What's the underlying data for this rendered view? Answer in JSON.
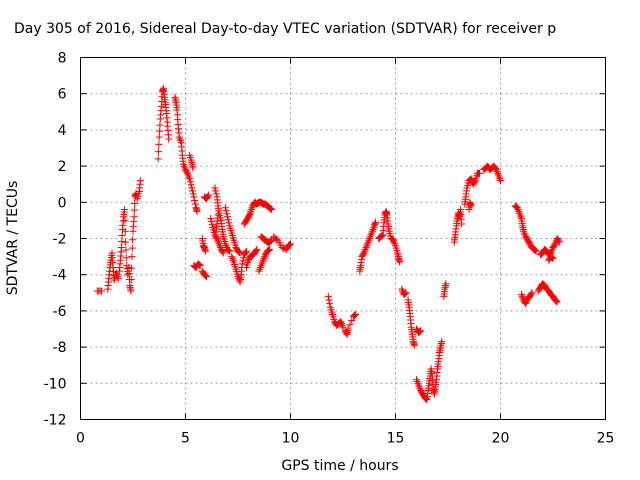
{
  "chart_data": {
    "type": "scatter",
    "title": "Day 305 of 2016, Sidereal Day-to-day VTEC variation (SDTVAR) for receiver p",
    "xlabel": "GPS time / hours",
    "ylabel": "SDTVAR / TECUs",
    "xlim": [
      0,
      25
    ],
    "ylim": [
      -12,
      8
    ],
    "x_ticks": [
      "0",
      "5",
      "10",
      "15",
      "20",
      "25"
    ],
    "y_ticks": [
      "-12",
      "-10",
      "-8",
      "-6",
      "-4",
      "-2",
      "0",
      "2",
      "4",
      "6",
      "8"
    ],
    "grid": true,
    "marker": "+",
    "color": "#ff0000",
    "segments": [
      [
        [
          0.8,
          -4.9
        ],
        [
          1.0,
          -4.9
        ]
      ],
      [
        [
          1.3,
          -4.8
        ],
        [
          1.35,
          -4.2
        ],
        [
          1.4,
          -3.6
        ],
        [
          1.45,
          -3.2
        ],
        [
          1.5,
          -2.8
        ],
        [
          1.55,
          -3.6
        ],
        [
          1.6,
          -4.3
        ],
        [
          1.7,
          -3.9
        ],
        [
          1.8,
          -4.2
        ]
      ],
      [
        [
          1.85,
          -3.8
        ],
        [
          1.9,
          -3.2
        ],
        [
          1.95,
          -2.5
        ],
        [
          2.0,
          -1.5
        ],
        [
          2.05,
          -0.8
        ],
        [
          2.1,
          -0.4
        ],
        [
          2.15,
          -2.2
        ],
        [
          2.2,
          -3.5
        ],
        [
          2.25,
          -4.0
        ]
      ],
      [
        [
          2.3,
          -3.6
        ],
        [
          2.35,
          -4.6
        ],
        [
          2.4,
          -4.9
        ],
        [
          2.45,
          -3.0
        ],
        [
          2.5,
          -1.6
        ],
        [
          2.55,
          -0.8
        ],
        [
          2.6,
          0.3
        ],
        [
          2.65,
          0.5
        ]
      ],
      [
        [
          2.7,
          0.2
        ],
        [
          2.8,
          0.6
        ],
        [
          2.85,
          1.2
        ]
      ],
      [
        [
          3.7,
          2.4
        ],
        [
          3.75,
          3.6
        ],
        [
          3.8,
          4.6
        ],
        [
          3.85,
          5.3
        ],
        [
          3.9,
          6.1
        ],
        [
          3.95,
          6.3
        ],
        [
          4.0,
          5.8
        ],
        [
          4.05,
          5.4
        ],
        [
          4.1,
          4.9
        ],
        [
          4.15,
          4.2
        ],
        [
          4.2,
          3.5
        ]
      ],
      [
        [
          4.5,
          5.8
        ],
        [
          4.55,
          5.5
        ],
        [
          4.6,
          5.1
        ],
        [
          4.65,
          4.3
        ],
        [
          4.7,
          3.6
        ],
        [
          4.8,
          3.3
        ],
        [
          4.85,
          2.6
        ],
        [
          4.9,
          2.1
        ],
        [
          5.0,
          1.8
        ],
        [
          5.1,
          1.6
        ],
        [
          5.2,
          1.3
        ],
        [
          5.3,
          0.8
        ],
        [
          5.4,
          0.3
        ],
        [
          5.5,
          -0.3
        ],
        [
          5.55,
          -0.5
        ]
      ],
      [
        [
          5.2,
          2.6
        ],
        [
          5.3,
          2.2
        ],
        [
          5.35,
          1.9
        ]
      ],
      [
        [
          5.4,
          -3.5
        ],
        [
          5.5,
          -3.6
        ],
        [
          5.6,
          -3.4
        ],
        [
          5.7,
          -3.5
        ]
      ],
      [
        [
          5.8,
          -2.0
        ],
        [
          5.85,
          -2.4
        ],
        [
          5.9,
          -2.5
        ],
        [
          5.95,
          -2.7
        ]
      ],
      [
        [
          5.8,
          -3.8
        ],
        [
          5.9,
          -4.0
        ],
        [
          6.0,
          -4.1
        ]
      ],
      [
        [
          5.9,
          0.3
        ],
        [
          6.0,
          0.2
        ],
        [
          6.1,
          0.4
        ]
      ],
      [
        [
          6.2,
          -0.9
        ],
        [
          6.3,
          -1.4
        ],
        [
          6.4,
          -1.8
        ],
        [
          6.5,
          -2.0
        ],
        [
          6.6,
          -2.3
        ],
        [
          6.7,
          -2.6
        ],
        [
          6.8,
          -2.8
        ]
      ],
      [
        [
          6.4,
          0.8
        ],
        [
          6.5,
          0.3
        ],
        [
          6.55,
          -0.2
        ],
        [
          6.6,
          -0.6
        ],
        [
          6.7,
          -1.0
        ],
        [
          6.75,
          -1.5
        ],
        [
          6.8,
          -1.9
        ],
        [
          6.9,
          -2.3
        ],
        [
          7.0,
          -2.6
        ],
        [
          7.1,
          -2.7
        ]
      ],
      [
        [
          6.45,
          -1.6
        ],
        [
          6.5,
          -1.2
        ],
        [
          6.55,
          -0.7
        ]
      ],
      [
        [
          6.9,
          -0.3
        ],
        [
          7.0,
          -0.8
        ],
        [
          7.1,
          -1.3
        ],
        [
          7.2,
          -1.7
        ],
        [
          7.3,
          -2.1
        ],
        [
          7.4,
          -2.5
        ],
        [
          7.5,
          -2.7
        ],
        [
          7.6,
          -2.8
        ]
      ],
      [
        [
          7.2,
          -3.0
        ],
        [
          7.3,
          -3.3
        ],
        [
          7.4,
          -3.7
        ],
        [
          7.5,
          -4.1
        ],
        [
          7.6,
          -4.4
        ],
        [
          7.65,
          -4.0
        ],
        [
          7.7,
          -3.4
        ],
        [
          7.8,
          -2.9
        ],
        [
          7.9,
          -2.7
        ]
      ],
      [
        [
          7.8,
          -1.2
        ],
        [
          7.9,
          -1.0
        ],
        [
          8.0,
          -0.8
        ],
        [
          8.1,
          -0.6
        ]
      ],
      [
        [
          7.9,
          -3.6
        ],
        [
          8.0,
          -3.2
        ],
        [
          8.1,
          -3.0
        ],
        [
          8.2,
          -2.9
        ],
        [
          8.3,
          -2.8
        ],
        [
          8.4,
          -2.6
        ]
      ],
      [
        [
          8.1,
          -0.5
        ],
        [
          8.2,
          -0.2
        ],
        [
          8.3,
          0.0
        ],
        [
          8.4,
          -0.1
        ],
        [
          8.5,
          0.0
        ],
        [
          8.6,
          0.0
        ],
        [
          8.7,
          -0.1
        ],
        [
          8.8,
          -0.1
        ],
        [
          8.9,
          -0.2
        ],
        [
          9.0,
          -0.3
        ],
        [
          9.1,
          -0.4
        ]
      ],
      [
        [
          8.5,
          -3.8
        ],
        [
          8.6,
          -3.5
        ],
        [
          8.7,
          -3.2
        ],
        [
          8.8,
          -2.9
        ],
        [
          8.9,
          -2.7
        ],
        [
          9.0,
          -2.6
        ]
      ],
      [
        [
          8.6,
          -1.9
        ],
        [
          8.7,
          -2.0
        ],
        [
          8.8,
          -2.1
        ],
        [
          8.9,
          -2.2
        ],
        [
          9.0,
          -2.2
        ],
        [
          9.1,
          -2.1
        ]
      ],
      [
        [
          9.2,
          -1.9
        ],
        [
          9.4,
          -2.1
        ],
        [
          9.6,
          -2.5
        ],
        [
          9.8,
          -2.6
        ],
        [
          9.9,
          -2.4
        ],
        [
          10.0,
          -2.3
        ]
      ],
      [
        [
          11.8,
          -5.2
        ],
        [
          11.9,
          -5.8
        ],
        [
          12.0,
          -6.2
        ],
        [
          12.1,
          -6.6
        ],
        [
          12.2,
          -6.8
        ],
        [
          12.3,
          -6.7
        ],
        [
          12.4,
          -6.6
        ],
        [
          12.5,
          -6.9
        ]
      ],
      [
        [
          12.6,
          -7.1
        ],
        [
          12.7,
          -7.3
        ],
        [
          12.75,
          -7.0
        ],
        [
          13.0,
          -6.3
        ],
        [
          13.1,
          -6.2
        ]
      ],
      [
        [
          13.3,
          -3.8
        ],
        [
          13.35,
          -3.5
        ],
        [
          13.4,
          -3.0
        ],
        [
          13.5,
          -2.8
        ],
        [
          13.6,
          -2.5
        ],
        [
          13.7,
          -2.2
        ],
        [
          13.8,
          -1.9
        ],
        [
          13.9,
          -1.6
        ],
        [
          14.0,
          -1.3
        ],
        [
          14.05,
          -1.1
        ]
      ],
      [
        [
          14.2,
          -2.0
        ],
        [
          14.3,
          -1.9
        ],
        [
          14.4,
          -1.8
        ],
        [
          14.45,
          -1.1
        ],
        [
          14.5,
          -0.7
        ],
        [
          14.55,
          -0.5
        ],
        [
          14.6,
          -0.7
        ],
        [
          14.65,
          -1.2
        ],
        [
          14.7,
          -1.6
        ],
        [
          14.8,
          -2.0
        ],
        [
          14.9,
          -2.1
        ],
        [
          15.0,
          -2.4
        ],
        [
          15.1,
          -2.8
        ],
        [
          15.15,
          -3.1
        ],
        [
          15.2,
          -3.3
        ]
      ],
      [
        [
          15.3,
          -4.8
        ],
        [
          15.4,
          -5.1
        ],
        [
          15.5,
          -5.0
        ]
      ],
      [
        [
          15.6,
          -5.4
        ],
        [
          15.65,
          -5.8
        ],
        [
          15.7,
          -6.3
        ],
        [
          15.75,
          -6.9
        ],
        [
          15.8,
          -7.3
        ],
        [
          15.85,
          -7.7
        ],
        [
          15.9,
          -7.9
        ]
      ],
      [
        [
          16.0,
          -7.0
        ],
        [
          16.1,
          -7.2
        ],
        [
          16.2,
          -7.1
        ]
      ],
      [
        [
          16.0,
          -9.8
        ],
        [
          16.1,
          -10.1
        ],
        [
          16.2,
          -10.4
        ],
        [
          16.3,
          -10.6
        ],
        [
          16.4,
          -10.8
        ],
        [
          16.5,
          -10.9
        ],
        [
          16.55,
          -10.4
        ],
        [
          16.6,
          -10.0
        ],
        [
          16.65,
          -9.6
        ],
        [
          16.7,
          -9.2
        ],
        [
          16.75,
          -9.6
        ],
        [
          16.8,
          -10.3
        ],
        [
          16.85,
          -10.6
        ],
        [
          16.9,
          -10.2
        ],
        [
          16.95,
          -9.8
        ],
        [
          17.0,
          -9.2
        ],
        [
          17.05,
          -8.8
        ],
        [
          17.1,
          -8.3
        ],
        [
          17.15,
          -8.0
        ],
        [
          17.2,
          -7.7
        ]
      ],
      [
        [
          17.3,
          -5.2
        ],
        [
          17.35,
          -4.8
        ],
        [
          17.4,
          -4.5
        ]
      ],
      [
        [
          17.8,
          -2.2
        ],
        [
          17.85,
          -1.8
        ],
        [
          17.9,
          -1.3
        ],
        [
          17.95,
          -0.9
        ],
        [
          18.0,
          -0.6
        ],
        [
          18.05,
          -0.8
        ],
        [
          18.1,
          -0.4
        ],
        [
          18.15,
          -1.2
        ]
      ],
      [
        [
          18.3,
          -0.1
        ],
        [
          18.35,
          0.3
        ],
        [
          18.4,
          0.8
        ],
        [
          18.5,
          1.2
        ],
        [
          18.6,
          1.3
        ],
        [
          18.7,
          1.0
        ],
        [
          18.8,
          1.2
        ],
        [
          18.9,
          1.6
        ],
        [
          19.0,
          1.6
        ]
      ],
      [
        [
          18.5,
          -0.4
        ],
        [
          18.55,
          0.0
        ],
        [
          18.6,
          -0.2
        ]
      ],
      [
        [
          19.2,
          1.8
        ],
        [
          19.3,
          1.9
        ],
        [
          19.4,
          2.0
        ],
        [
          19.5,
          1.8
        ],
        [
          19.6,
          1.9
        ],
        [
          19.7,
          2.0
        ],
        [
          19.8,
          1.8
        ],
        [
          19.9,
          1.5
        ],
        [
          20.0,
          1.2
        ]
      ],
      [
        [
          20.7,
          -0.2
        ],
        [
          20.8,
          -0.3
        ],
        [
          20.9,
          -0.6
        ],
        [
          21.0,
          -0.9
        ],
        [
          21.05,
          -1.3
        ],
        [
          21.1,
          -1.6
        ],
        [
          21.2,
          -1.9
        ],
        [
          21.3,
          -2.1
        ],
        [
          21.4,
          -2.3
        ],
        [
          21.5,
          -2.5
        ],
        [
          21.6,
          -2.6
        ],
        [
          21.7,
          -2.7
        ]
      ],
      [
        [
          21.0,
          -5.1
        ],
        [
          21.1,
          -5.4
        ],
        [
          21.2,
          -5.6
        ],
        [
          21.3,
          -5.3
        ],
        [
          21.4,
          -5.2
        ],
        [
          21.5,
          -5.0
        ]
      ],
      [
        [
          21.8,
          -4.9
        ],
        [
          21.9,
          -4.7
        ],
        [
          22.0,
          -4.5
        ],
        [
          22.1,
          -4.6
        ],
        [
          22.2,
          -4.8
        ],
        [
          22.3,
          -4.9
        ],
        [
          22.4,
          -5.1
        ],
        [
          22.5,
          -5.2
        ],
        [
          22.6,
          -5.4
        ],
        [
          22.7,
          -5.5
        ]
      ],
      [
        [
          21.9,
          -2.9
        ],
        [
          22.0,
          -2.8
        ],
        [
          22.1,
          -2.6
        ],
        [
          22.2,
          -2.7
        ],
        [
          22.3,
          -2.9
        ],
        [
          22.4,
          -2.8
        ],
        [
          22.5,
          -2.5
        ],
        [
          22.6,
          -2.3
        ],
        [
          22.7,
          -2.0
        ],
        [
          22.8,
          -2.2
        ]
      ],
      [
        [
          22.3,
          -3.2
        ],
        [
          22.4,
          -3.0
        ],
        [
          22.5,
          -3.1
        ]
      ]
    ]
  }
}
